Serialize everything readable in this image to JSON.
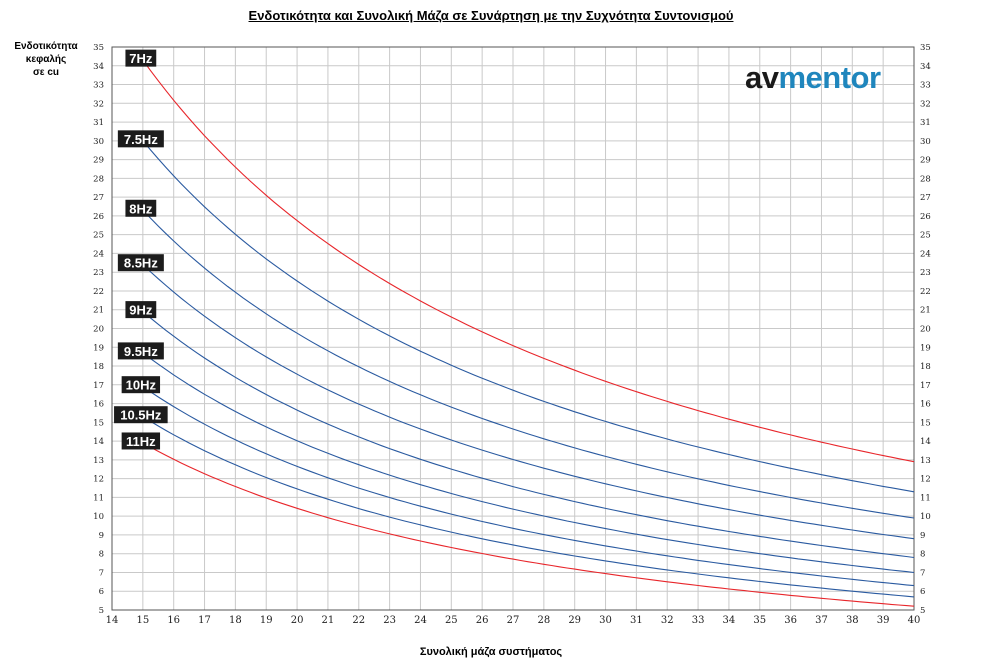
{
  "chart_data": {
    "type": "line",
    "title": "Ενδοτικότητα και Συνολική Μάζα σε Συνάρτηση με την Συχνότητα Συντονισμού",
    "xlabel": "Συνολική μάζα συστήματος",
    "ylabel_lines": [
      "Ενδοτικότητα",
      "κεφαλής",
      "σε cu"
    ],
    "xlim": [
      14,
      40
    ],
    "ylim": [
      5,
      35
    ],
    "x_ticks": [
      14,
      15,
      16,
      17,
      18,
      19,
      20,
      21,
      22,
      23,
      24,
      25,
      26,
      27,
      28,
      29,
      30,
      31,
      32,
      33,
      34,
      35,
      36,
      37,
      38,
      39,
      40
    ],
    "y_ticks": [
      5,
      6,
      7,
      8,
      9,
      10,
      11,
      12,
      13,
      14,
      15,
      16,
      17,
      18,
      19,
      20,
      21,
      22,
      23,
      24,
      25,
      26,
      27,
      28,
      29,
      30,
      31,
      32,
      33,
      34,
      35
    ],
    "grid": true,
    "x_range": [
      15,
      40
    ],
    "series": [
      {
        "name": "7Hz",
        "color": "#e8262b",
        "y_at_15": 34.3,
        "y_at_40": 12.9
      },
      {
        "name": "7.5Hz",
        "color": "#2a5aa0",
        "y_at_15": 30.0,
        "y_at_40": 11.3
      },
      {
        "name": "8Hz",
        "color": "#2a5aa0",
        "y_at_15": 26.3,
        "y_at_40": 9.9
      },
      {
        "name": "8.5Hz",
        "color": "#2a5aa0",
        "y_at_15": 23.4,
        "y_at_40": 8.8
      },
      {
        "name": "9Hz",
        "color": "#2a5aa0",
        "y_at_15": 20.9,
        "y_at_40": 7.8
      },
      {
        "name": "9.5Hz",
        "color": "#2a5aa0",
        "y_at_15": 18.7,
        "y_at_40": 7.0
      },
      {
        "name": "10Hz",
        "color": "#2a5aa0",
        "y_at_15": 16.9,
        "y_at_40": 6.3
      },
      {
        "name": "10.5Hz",
        "color": "#2a5aa0",
        "y_at_15": 15.3,
        "y_at_40": 5.7
      },
      {
        "name": "11Hz",
        "color": "#e8262b",
        "y_at_15": 13.9,
        "y_at_40": 5.2
      }
    ]
  },
  "logo": {
    "part1": "av",
    "part2": "mentor"
  }
}
